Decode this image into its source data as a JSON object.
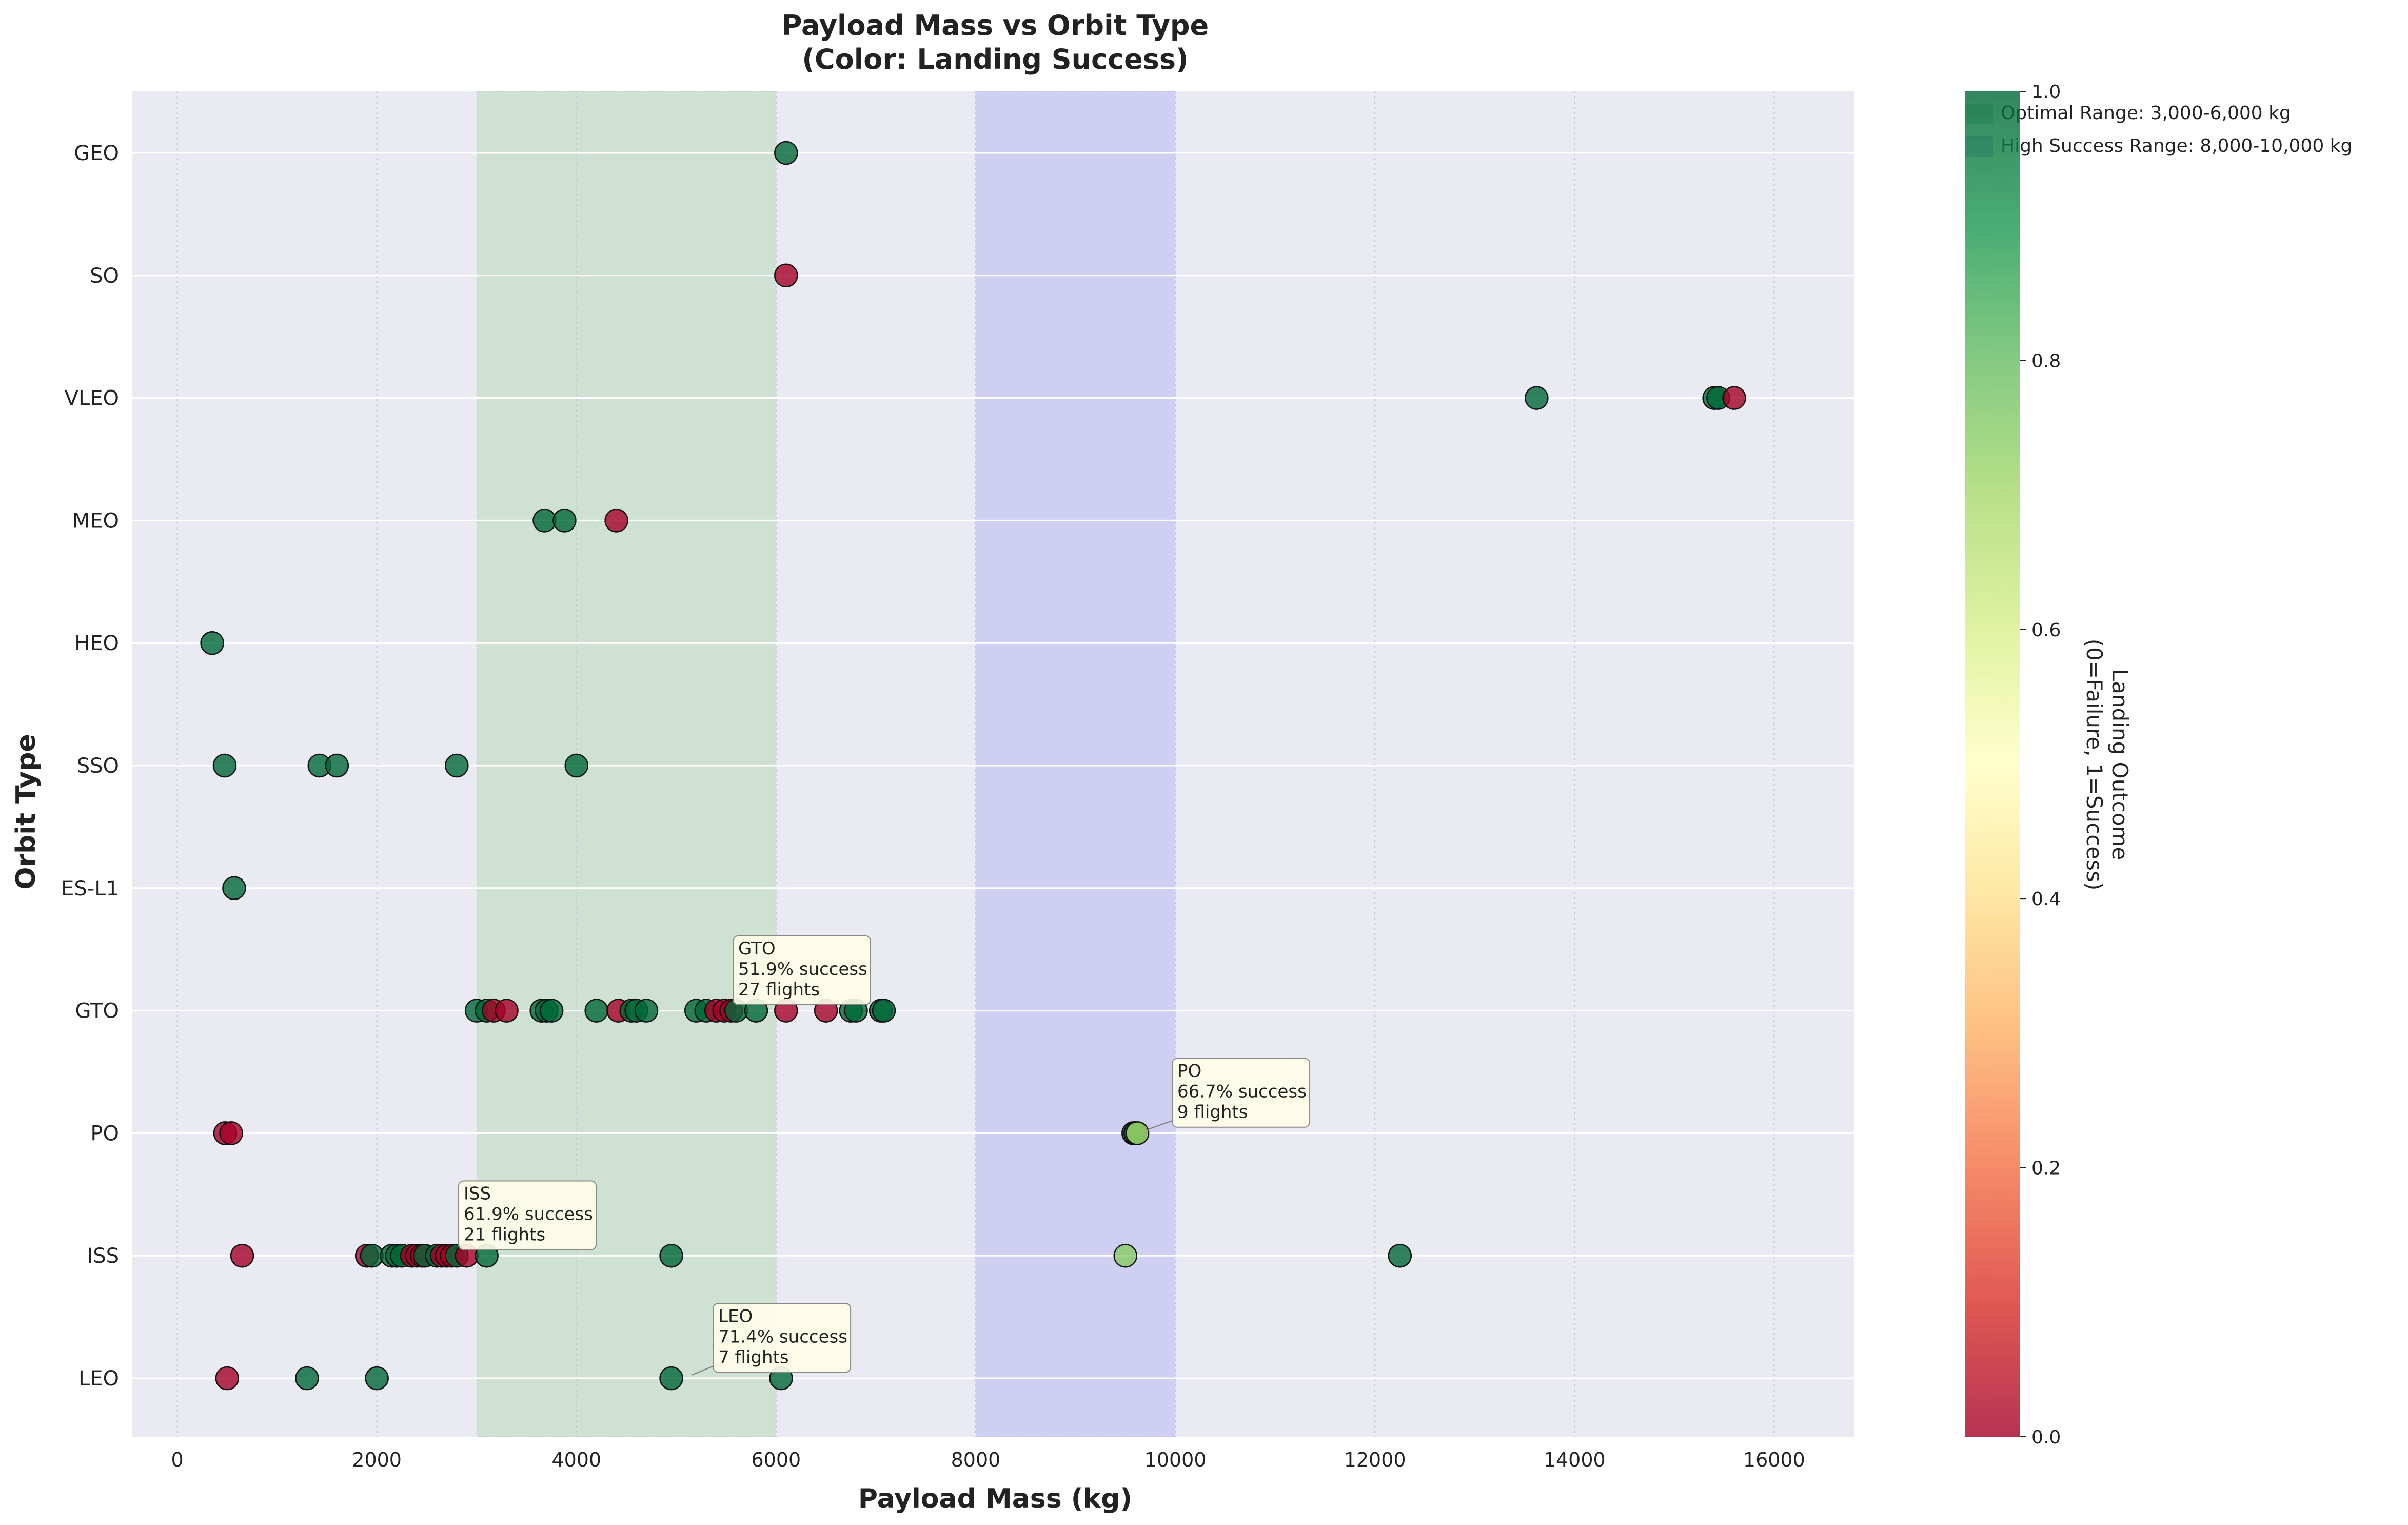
{
  "chart_data": {
    "type": "scatter",
    "title": "Payload Mass vs Orbit Type",
    "subtitle": "(Color: Landing Success)",
    "xlabel": "Payload Mass (kg)",
    "ylabel": "Orbit Type",
    "xlim": [
      -450,
      16800
    ],
    "x_ticks": [
      0,
      2000,
      4000,
      6000,
      8000,
      10000,
      12000,
      14000,
      16000
    ],
    "x_tick_labels": [
      "0",
      "2000",
      "4000",
      "6000",
      "8000",
      "10000",
      "12000",
      "14000",
      "16000"
    ],
    "categories": [
      "LEO",
      "ISS",
      "PO",
      "GTO",
      "ES-L1",
      "SSO",
      "HEO",
      "MEO",
      "VLEO",
      "SO",
      "GEO"
    ],
    "grid": true,
    "regions": [
      {
        "label": "Optimal Range: 3,000-6,000 kg",
        "x0": 3000,
        "x1": 6000,
        "color": "#b8d8b8"
      },
      {
        "label": "High Success Range: 8,000-10,000 kg",
        "x0": 8000,
        "x1": 10000,
        "color": "#b8b8f0"
      }
    ],
    "legend_position": "top-right",
    "colorbar": {
      "label_line1": "Landing Outcome",
      "label_line2": "(0=Failure, 1=Success)",
      "range": [
        0,
        1
      ],
      "ticks": [
        0.0,
        0.2,
        0.4,
        0.6,
        0.8,
        1.0
      ],
      "tick_labels": [
        "0.0",
        "0.2",
        "0.4",
        "0.6",
        "0.8",
        "1.0"
      ],
      "colormap": [
        "#a50026",
        "#d73027",
        "#f46d43",
        "#fdae61",
        "#fee08b",
        "#ffffbf",
        "#d9ef8b",
        "#a6d96a",
        "#66bd63",
        "#1a9850",
        "#006837"
      ]
    },
    "points": [
      {
        "orbit": "LEO",
        "x": 500,
        "y": 0
      },
      {
        "orbit": "LEO",
        "x": 1300,
        "y": 1
      },
      {
        "orbit": "LEO",
        "x": 2000,
        "y": 1
      },
      {
        "orbit": "LEO",
        "x": 4950,
        "y": 1
      },
      {
        "orbit": "LEO",
        "x": 6050,
        "y": 1
      },
      {
        "orbit": "ISS",
        "x": 650,
        "y": 0
      },
      {
        "orbit": "ISS",
        "x": 1900,
        "y": 0
      },
      {
        "orbit": "ISS",
        "x": 1950,
        "y": 1
      },
      {
        "orbit": "ISS",
        "x": 2150,
        "y": 1
      },
      {
        "orbit": "ISS",
        "x": 2200,
        "y": 1
      },
      {
        "orbit": "ISS",
        "x": 2250,
        "y": 1
      },
      {
        "orbit": "ISS",
        "x": 2350,
        "y": 0
      },
      {
        "orbit": "ISS",
        "x": 2400,
        "y": 0
      },
      {
        "orbit": "ISS",
        "x": 2450,
        "y": 0
      },
      {
        "orbit": "ISS",
        "x": 2480,
        "y": 1
      },
      {
        "orbit": "ISS",
        "x": 2600,
        "y": 1
      },
      {
        "orbit": "ISS",
        "x": 2650,
        "y": 0
      },
      {
        "orbit": "ISS",
        "x": 2700,
        "y": 0
      },
      {
        "orbit": "ISS",
        "x": 2750,
        "y": 0
      },
      {
        "orbit": "ISS",
        "x": 2800,
        "y": 1
      },
      {
        "orbit": "ISS",
        "x": 2900,
        "y": 0
      },
      {
        "orbit": "ISS",
        "x": 3100,
        "y": 1
      },
      {
        "orbit": "ISS",
        "x": 4950,
        "y": 1
      },
      {
        "orbit": "ISS",
        "x": 9500,
        "y": 0.75
      },
      {
        "orbit": "ISS",
        "x": 12250,
        "y": 1
      },
      {
        "orbit": "PO",
        "x": 480,
        "y": 0
      },
      {
        "orbit": "PO",
        "x": 540,
        "y": 0
      },
      {
        "orbit": "PO",
        "x": 9580,
        "y": 1
      },
      {
        "orbit": "PO",
        "x": 9600,
        "y": 1
      },
      {
        "orbit": "PO",
        "x": 9620,
        "y": 0.7
      },
      {
        "orbit": "GTO",
        "x": 3000,
        "y": 1
      },
      {
        "orbit": "GTO",
        "x": 3100,
        "y": 1
      },
      {
        "orbit": "GTO",
        "x": 3170,
        "y": 0
      },
      {
        "orbit": "GTO",
        "x": 3300,
        "y": 0
      },
      {
        "orbit": "GTO",
        "x": 3650,
        "y": 1
      },
      {
        "orbit": "GTO",
        "x": 3700,
        "y": 1
      },
      {
        "orbit": "GTO",
        "x": 3750,
        "y": 1
      },
      {
        "orbit": "GTO",
        "x": 4200,
        "y": 1
      },
      {
        "orbit": "GTO",
        "x": 4420,
        "y": 0
      },
      {
        "orbit": "GTO",
        "x": 4550,
        "y": 1
      },
      {
        "orbit": "GTO",
        "x": 4600,
        "y": 1
      },
      {
        "orbit": "GTO",
        "x": 4700,
        "y": 1
      },
      {
        "orbit": "GTO",
        "x": 5200,
        "y": 1
      },
      {
        "orbit": "GTO",
        "x": 5300,
        "y": 1
      },
      {
        "orbit": "GTO",
        "x": 5400,
        "y": 0
      },
      {
        "orbit": "GTO",
        "x": 5480,
        "y": 0
      },
      {
        "orbit": "GTO",
        "x": 5550,
        "y": 0
      },
      {
        "orbit": "GTO",
        "x": 5600,
        "y": 1
      },
      {
        "orbit": "GTO",
        "x": 5800,
        "y": 1
      },
      {
        "orbit": "GTO",
        "x": 6100,
        "y": 0
      },
      {
        "orbit": "GTO",
        "x": 6500,
        "y": 0
      },
      {
        "orbit": "GTO",
        "x": 6750,
        "y": 1
      },
      {
        "orbit": "GTO",
        "x": 6800,
        "y": 1
      },
      {
        "orbit": "GTO",
        "x": 7050,
        "y": 1
      },
      {
        "orbit": "GTO",
        "x": 7080,
        "y": 1
      },
      {
        "orbit": "ES-L1",
        "x": 570,
        "y": 1
      },
      {
        "orbit": "SSO",
        "x": 475,
        "y": 1
      },
      {
        "orbit": "SSO",
        "x": 1425,
        "y": 1
      },
      {
        "orbit": "SSO",
        "x": 1600,
        "y": 1
      },
      {
        "orbit": "SSO",
        "x": 2800,
        "y": 1
      },
      {
        "orbit": "SSO",
        "x": 4000,
        "y": 1
      },
      {
        "orbit": "HEO",
        "x": 350,
        "y": 1
      },
      {
        "orbit": "MEO",
        "x": 3680,
        "y": 1
      },
      {
        "orbit": "MEO",
        "x": 3880,
        "y": 1
      },
      {
        "orbit": "MEO",
        "x": 4400,
        "y": 0
      },
      {
        "orbit": "VLEO",
        "x": 13620,
        "y": 1
      },
      {
        "orbit": "VLEO",
        "x": 15400,
        "y": 1
      },
      {
        "orbit": "VLEO",
        "x": 15440,
        "y": 1
      },
      {
        "orbit": "VLEO",
        "x": 15600,
        "y": 0
      },
      {
        "orbit": "SO",
        "x": 6100,
        "y": 0
      },
      {
        "orbit": "GEO",
        "x": 6100,
        "y": 1
      }
    ],
    "annotations": [
      {
        "orbit": "GTO",
        "x": 5600,
        "lines": [
          "GTO",
          "51.9% success",
          "27 flights"
        ],
        "dy": -0.25
      },
      {
        "orbit": "PO",
        "x": 10000,
        "lines": [
          "PO",
          "66.7% success",
          "9 flights"
        ],
        "dy": -0.25,
        "arrow_to_x": 9600
      },
      {
        "orbit": "ISS",
        "x": 2850,
        "lines": [
          "ISS",
          "61.9% success",
          "21 flights"
        ],
        "dy": -0.25
      },
      {
        "orbit": "LEO",
        "x": 5400,
        "lines": [
          "LEO",
          "71.4% success",
          "7 flights"
        ],
        "dy": -0.25,
        "arrow_to_x": 5050
      }
    ]
  }
}
